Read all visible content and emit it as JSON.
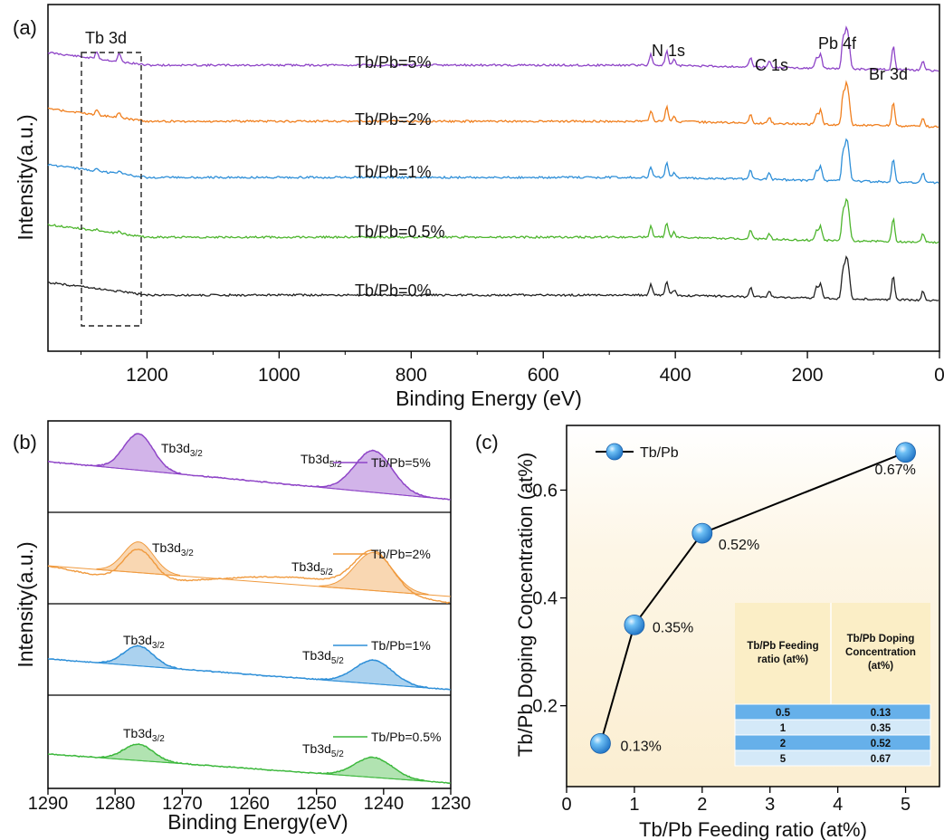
{
  "chart_data": [
    {
      "panel": "(a)",
      "type": "line",
      "xlabel": "Binding Energy (eV)",
      "ylabel": "Intensity(a.u.)",
      "xlim": [
        1350,
        0
      ],
      "xticks": [
        1200,
        1000,
        800,
        600,
        400,
        200,
        0
      ],
      "box_label": "Tb 3d",
      "peak_labels": [
        "N 1s",
        "C 1s",
        "Pb 4f",
        "Br 3d"
      ],
      "series": [
        {
          "name": "Tb/Pb=5%",
          "color": "#8E44C7"
        },
        {
          "name": "Tb/Pb=2%",
          "color": "#F07F1E"
        },
        {
          "name": "Tb/Pb=1%",
          "color": "#2E8FD8"
        },
        {
          "name": "Tb/Pb=0.5%",
          "color": "#4DB52D"
        },
        {
          "name": "Tb/Pb=0%",
          "color": "#222222"
        }
      ],
      "peaks_eV": [
        1276,
        1242,
        437,
        413,
        402,
        286,
        258,
        186,
        180,
        146,
        141,
        137,
        70,
        25
      ]
    },
    {
      "panel": "(b)",
      "type": "line",
      "xlabel": "Binding Energy(eV)",
      "ylabel": "Intensity(a.u.)",
      "xlim": [
        1290,
        1230
      ],
      "xticks": [
        1290,
        1280,
        1270,
        1260,
        1250,
        1240,
        1230
      ],
      "subpanels": [
        {
          "name": "Tb/Pb=5%",
          "color": "#8E44C7",
          "peak1_label": "Tb3d",
          "peak1_sub": "3/2",
          "peak2_label": "Tb3d",
          "peak2_sub": "5/2"
        },
        {
          "name": "Tb/Pb=2%",
          "color": "#F09A3E",
          "peak1_label": "Tb3d",
          "peak1_sub": "3/2",
          "peak2_label": "Tb3d",
          "peak2_sub": "5/2"
        },
        {
          "name": "Tb/Pb=1%",
          "color": "#2E8FD8",
          "peak1_label": "Tb3d",
          "peak1_sub": "3/2",
          "peak2_label": "Tb3d",
          "peak2_sub": "5/2"
        },
        {
          "name": "Tb/Pb=0.5%",
          "color": "#3DB83D",
          "peak1_label": "Tb3d",
          "peak1_sub": "3/2",
          "peak2_label": "Tb3d",
          "peak2_sub": "5/2"
        }
      ]
    },
    {
      "panel": "(c)",
      "type": "line",
      "xlabel": "Tb/Pb Feeding ratio (at%)",
      "ylabel": "Tb/Pb Doping Concentration (at%)",
      "xlim": [
        0,
        5.5
      ],
      "ylim": [
        0.05,
        0.72
      ],
      "xticks": [
        0,
        1,
        2,
        3,
        4,
        5
      ],
      "yticks": [
        0.2,
        0.4,
        0.6
      ],
      "series": [
        {
          "name": "Tb/Pb",
          "x": [
            0.5,
            1,
            2,
            5
          ],
          "y": [
            0.13,
            0.35,
            0.52,
            0.67
          ]
        }
      ],
      "point_labels": [
        "0.13%",
        "0.35%",
        "0.52%",
        "0.67%"
      ],
      "table": {
        "headers": [
          "Tb/Pb Feeding ratio (at%)",
          "Tb/Pb Doping Concentration (at%)"
        ],
        "rows": [
          [
            "0.5",
            "0.13"
          ],
          [
            "1",
            "0.35"
          ],
          [
            "2",
            "0.52"
          ],
          [
            "5",
            "0.67"
          ]
        ]
      }
    }
  ]
}
